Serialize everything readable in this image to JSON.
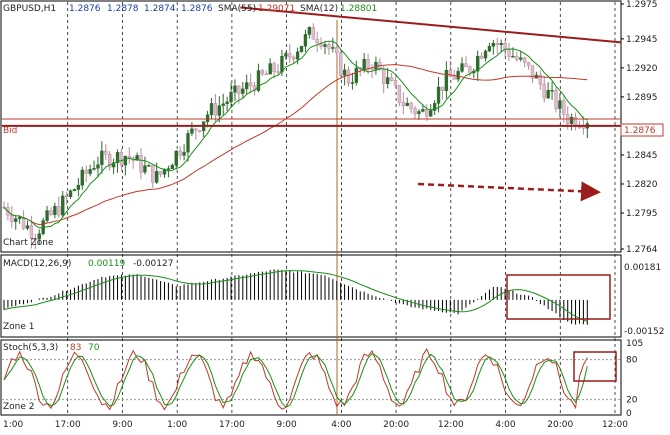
{
  "chart_data": [
    {
      "type": "candlestick",
      "pane": "price",
      "symbol": "GBPUSD,H1",
      "ohlc_header": [
        "1.2876",
        "1.2878",
        "1.2874",
        "1.2876"
      ],
      "indicators": [
        {
          "name": "SMA(55)",
          "value": "1.29071",
          "color": "#c0392b"
        },
        {
          "name": "SMA(12)",
          "value": "1.28801",
          "color": "#1a8f1a"
        }
      ],
      "ylim": [
        1.2764,
        1.2975
      ],
      "y_ticks": [
        "1.2975",
        "1.2945",
        "1.2920",
        "1.2895",
        "1.2876",
        "1.2845",
        "1.2820",
        "1.2795",
        "1.2764"
      ],
      "bid_price": 1.2876,
      "bid_label": "Bid",
      "bid_tag": "1.2876",
      "zone_label": "Chart Zone",
      "trendline": {
        "from": [
          0.385,
          1.2972
        ],
        "to": [
          1.0,
          1.2942
        ]
      },
      "support_line": 1.287,
      "key_points": [
        {
          "t": 0.0,
          "price": 1.28
        },
        {
          "t": 0.05,
          "price": 1.2778
        },
        {
          "t": 0.1,
          "price": 1.2806
        },
        {
          "t": 0.15,
          "price": 1.284
        },
        {
          "t": 0.2,
          "price": 1.2845
        },
        {
          "t": 0.25,
          "price": 1.2825
        },
        {
          "t": 0.3,
          "price": 1.286
        },
        {
          "t": 0.33,
          "price": 1.288
        },
        {
          "t": 0.38,
          "price": 1.2898
        },
        {
          "t": 0.45,
          "price": 1.2922
        },
        {
          "t": 0.5,
          "price": 1.295
        },
        {
          "t": 0.52,
          "price": 1.2945
        },
        {
          "t": 0.56,
          "price": 1.291
        },
        {
          "t": 0.6,
          "price": 1.2925
        },
        {
          "t": 0.65,
          "price": 1.289
        },
        {
          "t": 0.68,
          "price": 1.288
        },
        {
          "t": 0.72,
          "price": 1.291
        },
        {
          "t": 0.76,
          "price": 1.292
        },
        {
          "t": 0.79,
          "price": 1.2945
        },
        {
          "t": 0.82,
          "price": 1.2935
        },
        {
          "t": 0.86,
          "price": 1.2915
        },
        {
          "t": 0.89,
          "price": 1.2895
        },
        {
          "t": 0.92,
          "price": 1.2876
        },
        {
          "t": 0.95,
          "price": 1.2876
        }
      ]
    },
    {
      "type": "histogram",
      "pane": "macd",
      "title": "MACD(12,26,9)",
      "values_label": [
        "0.00119",
        "-0.00127"
      ],
      "y_ticks": [
        "0.00181",
        "-0.00152"
      ],
      "ylim": [
        -0.00152,
        0.00181
      ],
      "zone_label": "Zone 1",
      "key_points": [
        {
          "t": 0.0,
          "v": -0.0004
        },
        {
          "t": 0.08,
          "v": 0.0002
        },
        {
          "t": 0.16,
          "v": 0.001
        },
        {
          "t": 0.22,
          "v": 0.0011
        },
        {
          "t": 0.28,
          "v": 0.0006
        },
        {
          "t": 0.35,
          "v": 0.0009
        },
        {
          "t": 0.44,
          "v": 0.0013
        },
        {
          "t": 0.52,
          "v": 0.0011
        },
        {
          "t": 0.58,
          "v": 0.0004
        },
        {
          "t": 0.66,
          "v": -0.0003
        },
        {
          "t": 0.74,
          "v": -0.0006
        },
        {
          "t": 0.8,
          "v": 0.0006
        },
        {
          "t": 0.86,
          "v": 0.0001
        },
        {
          "t": 0.92,
          "v": -0.001
        },
        {
          "t": 0.95,
          "v": -0.0011
        }
      ]
    },
    {
      "type": "line",
      "pane": "stoch",
      "title": "Stoch(5,3,3)",
      "values_label": [
        "83",
        "70"
      ],
      "y_ticks": [
        "105",
        "80",
        "20",
        "0"
      ],
      "ylim": [
        0,
        105
      ],
      "zone_label": "Zone 2"
    }
  ],
  "time_labels": [
    "1:00",
    "17:00",
    "9:00",
    "1:00",
    "17:00",
    "9:00",
    "4:00",
    "20:00",
    "12:00",
    "4:00",
    "20:00",
    "12:00"
  ],
  "colors": {
    "bull": "#2f6b2f",
    "bear": "#e0bccc",
    "sma55": "#c0392b",
    "sma12": "#1a8f1a",
    "annotation": "#9b1c1c",
    "bid": "#c0392b",
    "indicator_text_green": "#1a8f1a",
    "indicator_text_red": "#c0392b",
    "macd_text": "#1a8f1a"
  }
}
